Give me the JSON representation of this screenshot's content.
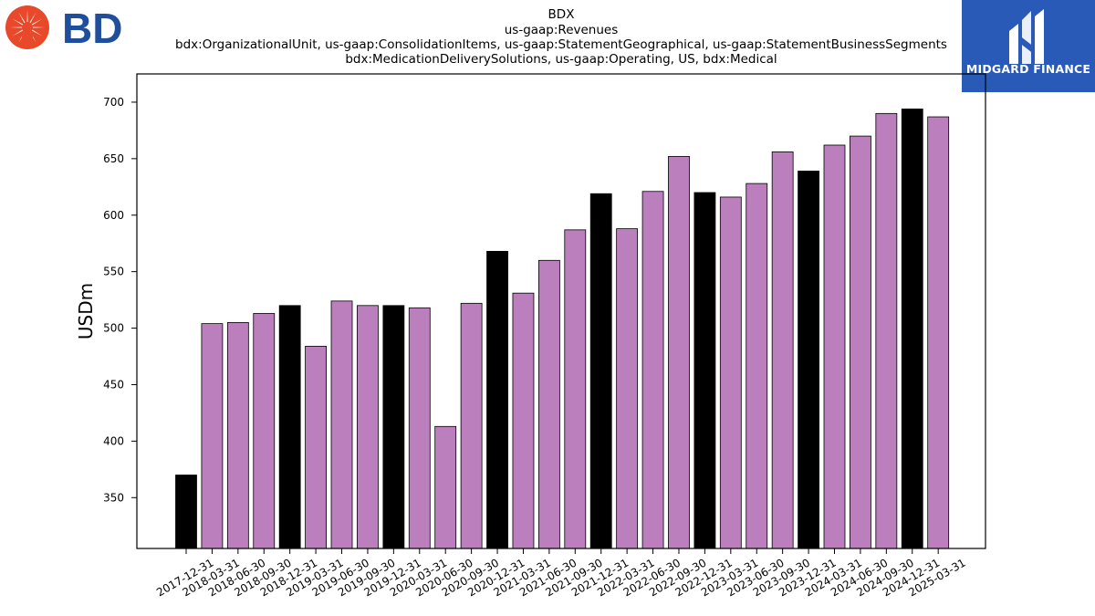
{
  "logos": {
    "left": {
      "text": "BD",
      "color": "#1f4e9c",
      "mark_color": "#e8492b"
    },
    "right": {
      "text": "MIDGARD FINANCE",
      "bg_color": "#2a5ab8"
    }
  },
  "chart_data": {
    "type": "bar",
    "title": "BDX",
    "subtitle_lines": [
      "us-gaap:Revenues",
      "bdx:OrganizationalUnit, us-gaap:ConsolidationItems, us-gaap:StatementGeographical, us-gaap:StatementBusinessSegments",
      "bdx:MedicationDeliverySolutions, us-gaap:Operating, US, bdx:Medical"
    ],
    "xlabel": "",
    "ylabel": "USDm",
    "ylim": [
      305,
      725
    ],
    "yticks": [
      350,
      400,
      450,
      500,
      550,
      600,
      650,
      700
    ],
    "categories": [
      "2017-12-31",
      "2018-03-31",
      "2018-06-30",
      "2018-09-30",
      "2018-12-31",
      "2019-03-31",
      "2019-06-30",
      "2019-09-30",
      "2019-12-31",
      "2020-03-31",
      "2020-06-30",
      "2020-09-30",
      "2020-12-31",
      "2021-03-31",
      "2021-06-30",
      "2021-09-30",
      "2021-12-31",
      "2022-03-31",
      "2022-06-30",
      "2022-09-30",
      "2022-12-31",
      "2023-03-31",
      "2023-06-30",
      "2023-09-30",
      "2023-12-31",
      "2024-03-31",
      "2024-06-30",
      "2024-09-30",
      "2024-12-31",
      "2025-03-31"
    ],
    "values": [
      370,
      504,
      505,
      513,
      520,
      484,
      524,
      520,
      520,
      518,
      413,
      522,
      568,
      531,
      560,
      587,
      619,
      588,
      621,
      652,
      620,
      616,
      628,
      656,
      639,
      662,
      670,
      690,
      694,
      687
    ],
    "highlight_color": "#000000",
    "default_color": "#bb7fbd",
    "highlight_months": [
      "12"
    ],
    "grid": false
  }
}
